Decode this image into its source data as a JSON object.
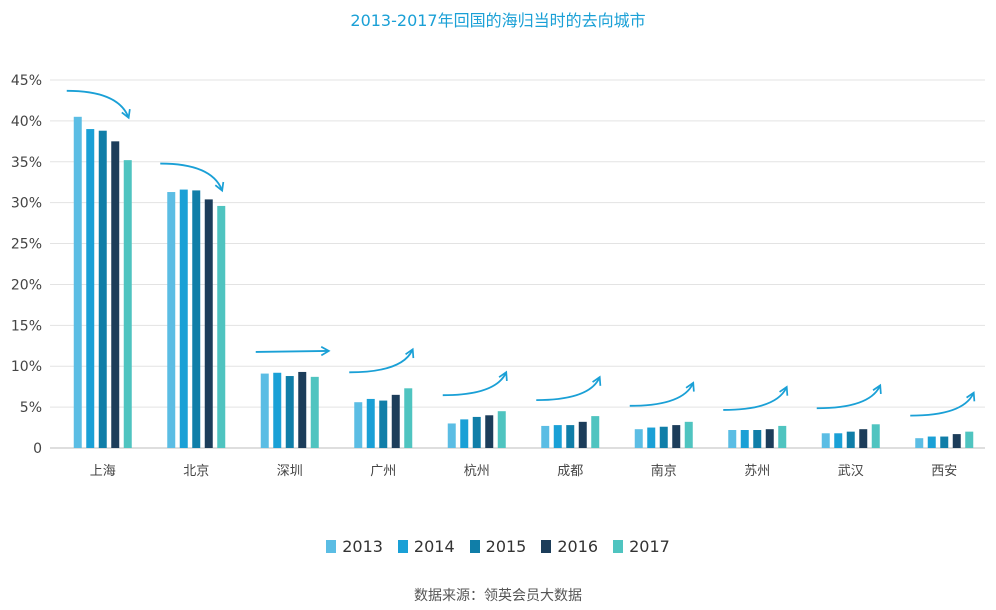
{
  "chart_data": {
    "type": "bar",
    "title": "2013-2017年回国的海归当时的去向城市",
    "categories": [
      "上海",
      "北京",
      "深圳",
      "广州",
      "杭州",
      "成都",
      "南京",
      "苏州",
      "武汉",
      "西安"
    ],
    "series": [
      {
        "name": "2013",
        "color": "#5bbde4",
        "values": [
          40.5,
          31.3,
          9.1,
          5.6,
          3.0,
          2.7,
          2.3,
          2.2,
          1.8,
          1.2
        ]
      },
      {
        "name": "2014",
        "color": "#1aa0d6",
        "values": [
          39.0,
          31.6,
          9.2,
          6.0,
          3.5,
          2.8,
          2.5,
          2.2,
          1.8,
          1.4
        ]
      },
      {
        "name": "2015",
        "color": "#107ea8",
        "values": [
          38.8,
          31.5,
          8.8,
          5.8,
          3.8,
          2.8,
          2.6,
          2.2,
          2.0,
          1.4
        ]
      },
      {
        "name": "2016",
        "color": "#1c3d5a",
        "values": [
          37.5,
          30.4,
          9.3,
          6.5,
          4.0,
          3.2,
          2.8,
          2.3,
          2.3,
          1.7
        ]
      },
      {
        "name": "2017",
        "color": "#4fc4c0",
        "values": [
          35.2,
          29.6,
          8.7,
          7.3,
          4.5,
          3.9,
          3.2,
          2.7,
          2.9,
          2.0
        ]
      }
    ],
    "ylim": [
      0,
      45
    ],
    "yticks": [
      0,
      5,
      10,
      15,
      20,
      25,
      30,
      35,
      40,
      45
    ],
    "ytick_labels": [
      "0",
      "5%",
      "10%",
      "15%",
      "20%",
      "25%",
      "30%",
      "35%",
      "40%",
      "45%"
    ],
    "trend_arrows": [
      "down",
      "down",
      "flat",
      "up",
      "up",
      "up",
      "up",
      "up",
      "up",
      "up"
    ],
    "grid": true,
    "legend_placement": "bottom"
  },
  "source_text": "数据来源：领英会员大数据",
  "colors": {
    "title": "#1aa0d6",
    "arrow": "#1aa0d6",
    "grid": "#e3e3e3"
  }
}
